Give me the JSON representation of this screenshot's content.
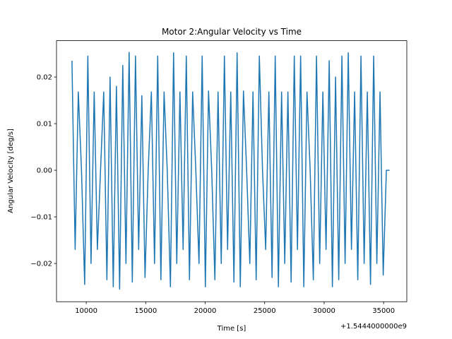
{
  "chart_data": {
    "type": "line",
    "title": "Motor 2:Angular Velocity vs Time",
    "x_label": "Time [s]",
    "y_label": "Angular Velocity [deg/s]",
    "x_offset_label": "+1.5444000000e9",
    "x": [
      8800,
      9067,
      9334,
      9601,
      9868,
      10135,
      10402,
      10669,
      10936,
      11203,
      11470,
      11737,
      12004,
      12271,
      12538,
      12805,
      13072,
      13339,
      13606,
      13873,
      14140,
      14407,
      14674,
      14941,
      15208,
      15475,
      15742,
      16009,
      16276,
      16543,
      16810,
      17077,
      17344,
      17611,
      17878,
      18145,
      18412,
      18679,
      18946,
      19213,
      19480,
      19747,
      20014,
      20281,
      20548,
      20815,
      21082,
      21349,
      21616,
      21883,
      22150,
      22417,
      22684,
      22951,
      23218,
      23485,
      23752,
      24019,
      24286,
      24553,
      24820,
      25087,
      25354,
      25621,
      25888,
      26155,
      26422,
      26689,
      26956,
      27223,
      27490,
      27757,
      28024,
      28291,
      28558,
      28825,
      29092,
      29359,
      29626,
      29893,
      30160,
      30427,
      30694,
      30961,
      31228,
      31495,
      31762,
      32029,
      32296,
      32563,
      32830,
      33097,
      33364,
      33631,
      33898,
      34165,
      34432,
      34699,
      34966,
      35233,
      35500
    ],
    "series": [
      {
        "color": "#1f77b4",
        "values": [
          0.0235,
          -0.017,
          0.0168,
          0,
          -0.0245,
          0.0245,
          -0.02,
          0.0168,
          -0.017,
          0,
          0.0168,
          -0.0235,
          0.02,
          -0.025,
          0.018,
          -0.0255,
          0.0225,
          -0.02,
          0.0253,
          -0.024,
          0.0245,
          -0.017,
          0.016,
          -0.023,
          0,
          0.0168,
          -0.02,
          0.0245,
          -0.0235,
          0.0168,
          0,
          -0.025,
          0.0252,
          -0.02,
          0.0168,
          -0.017,
          0.0245,
          -0.0235,
          0.0168,
          0,
          -0.02,
          0.0245,
          -0.025,
          0.017,
          0,
          -0.0235,
          0.0168,
          -0.02,
          0.0245,
          -0.017,
          0.0168,
          -0.024,
          0.0252,
          -0.025,
          0.017,
          0,
          -0.02,
          0.0168,
          -0.0235,
          0.0245,
          0,
          -0.017,
          0.0168,
          -0.023,
          0.0245,
          -0.025,
          0.0168,
          -0.02,
          0.0168,
          -0.024,
          0.0245,
          -0.017,
          0.0245,
          -0.025,
          0.0168,
          0,
          -0.0235,
          0.0245,
          -0.02,
          0.0168,
          -0.017,
          0.0235,
          -0.025,
          0.02,
          -0.0235,
          0.0245,
          -0.02,
          0.0252,
          -0.017,
          0.0168,
          -0.0235,
          0.0245,
          -0.02,
          0.0168,
          -0.0245,
          0.0245,
          -0.02,
          0.0168,
          -0.0225,
          0,
          0
        ]
      }
    ],
    "xlim": [
      7500,
      36950
    ],
    "ylim": [
      -0.0282,
      0.0278
    ],
    "xticks": [
      10000,
      15000,
      20000,
      25000,
      30000,
      35000
    ],
    "yticks": [
      {
        "value": -0.02,
        "label": "−0.02"
      },
      {
        "value": -0.01,
        "label": "−0.01"
      },
      {
        "value": 0,
        "label": "0.00"
      },
      0.01,
      0.02
    ]
  }
}
